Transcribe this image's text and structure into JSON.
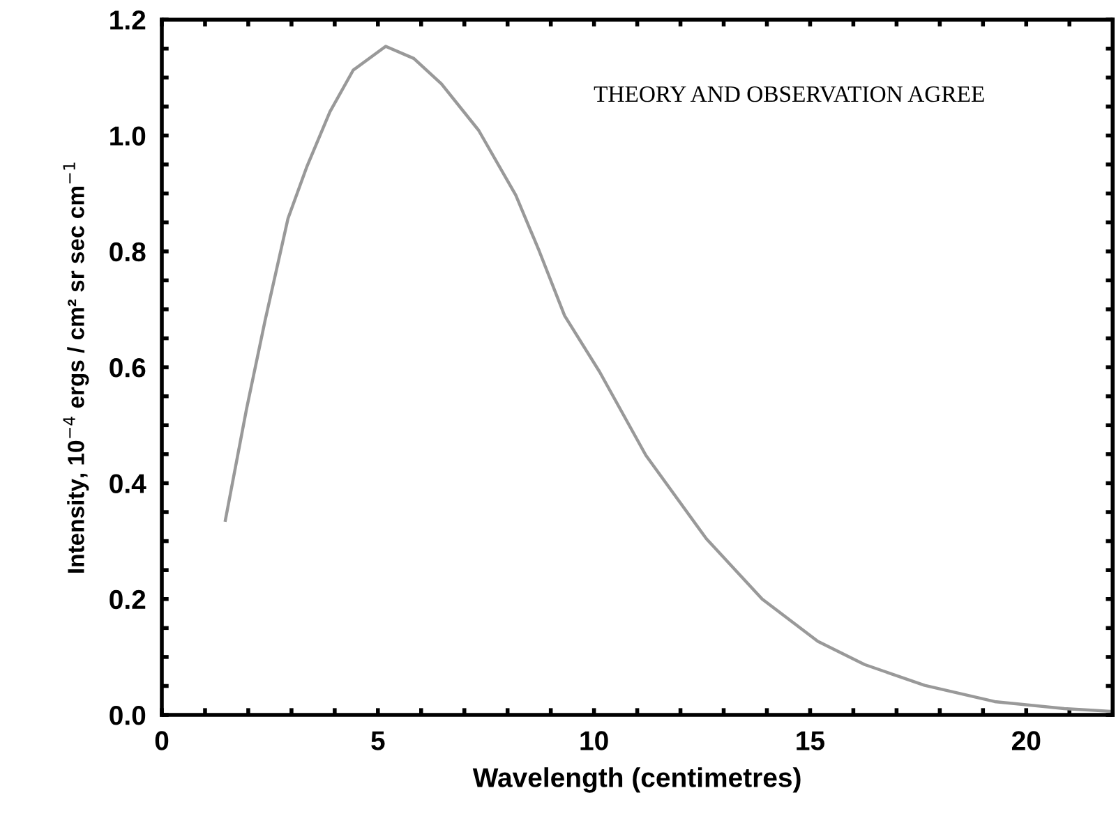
{
  "chart_data": {
    "type": "line",
    "xlabel": "Wavelength (centimetres)",
    "ylabel": "Intensity, 10$^{−4}$ ergs / cm² sr sec cm$^{−1}$",
    "annotations": [
      "THEORY AND OBSERVATION AGREE"
    ],
    "series": [
      {
        "color": "#999999",
        "x": [
          1.47,
          1.96,
          2.39,
          2.92,
          3.35,
          3.89,
          4.43,
          5.18,
          5.83,
          6.47,
          7.33,
          8.19,
          8.73,
          9.32,
          10.13,
          11.2,
          12.6,
          13.89,
          15.18,
          16.26,
          17.65,
          19.27,
          20.88,
          22.0
        ],
        "values": [
          0.336,
          0.528,
          0.681,
          0.857,
          0.945,
          1.041,
          1.113,
          1.154,
          1.133,
          1.089,
          1.009,
          0.897,
          0.801,
          0.689,
          0.592,
          0.448,
          0.304,
          0.2,
          0.127,
          0.087,
          0.051,
          0.023,
          0.011,
          0.006
        ]
      }
    ],
    "xlim": [
      0,
      22
    ],
    "xticks": [
      0,
      {
        "value": 1,
        "label": null
      },
      {
        "value": 2,
        "label": null
      },
      {
        "value": 3,
        "label": null
      },
      {
        "value": 4,
        "label": null
      },
      5,
      {
        "value": 6,
        "label": null
      },
      {
        "value": 7,
        "label": null
      },
      {
        "value": 8,
        "label": null
      },
      {
        "value": 9,
        "label": null
      },
      10,
      {
        "value": 11,
        "label": null
      },
      {
        "value": 12,
        "label": null
      },
      {
        "value": 13,
        "label": null
      },
      {
        "value": 14,
        "label": null
      },
      15,
      {
        "value": 16,
        "label": null
      },
      {
        "value": 17,
        "label": null
      },
      {
        "value": 18,
        "label": null
      },
      {
        "value": 19,
        "label": null
      },
      20,
      {
        "value": 21,
        "label": null
      }
    ],
    "ylim": [
      0,
      1.2
    ],
    "yticks": [
      {
        "value": 0,
        "label": "0.0"
      },
      {
        "value": 0.05,
        "label": null
      },
      {
        "value": 0.1,
        "label": null
      },
      {
        "value": 0.15,
        "label": null
      },
      {
        "value": 0.2,
        "label": "0.2"
      },
      {
        "value": 0.25,
        "label": null
      },
      {
        "value": 0.3,
        "label": null
      },
      {
        "value": 0.35,
        "label": null
      },
      {
        "value": 0.4,
        "label": "0.4"
      },
      {
        "value": 0.45,
        "label": null
      },
      {
        "value": 0.5,
        "label": null
      },
      {
        "value": 0.55,
        "label": null
      },
      {
        "value": 0.6,
        "label": "0.6"
      },
      {
        "value": 0.65,
        "label": null
      },
      {
        "value": 0.7,
        "label": null
      },
      {
        "value": 0.75,
        "label": null
      },
      {
        "value": 0.8,
        "label": "0.8"
      },
      {
        "value": 0.85,
        "label": null
      },
      {
        "value": 0.9,
        "label": null
      },
      {
        "value": 0.95,
        "label": null
      },
      {
        "value": 1.0,
        "label": "1.0"
      },
      {
        "value": 1.05,
        "label": null
      },
      {
        "value": 1.1,
        "label": null
      },
      {
        "value": 1.15,
        "label": null
      },
      {
        "value": 1.2,
        "label": "1.2"
      }
    ],
    "marker": "none",
    "line_style": "solid"
  }
}
